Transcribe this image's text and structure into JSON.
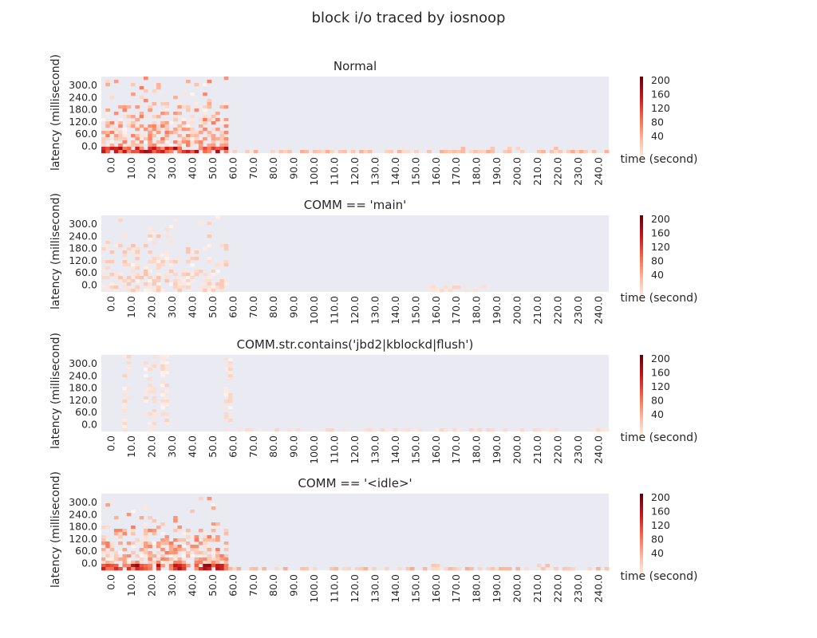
{
  "figure": {
    "title": "block i/o traced by iosnoop"
  },
  "chart_data": [
    {
      "type": "heatmap",
      "title": "Normal",
      "ylabel": "latency (millisecond)",
      "xlabel": "time (second)",
      "x_ticklabels": [
        "0.0",
        "10.0",
        "20.0",
        "30.0",
        "40.0",
        "50.0",
        "60.0",
        "70.0",
        "80.0",
        "90.0",
        "100.0",
        "110.0",
        "120.0",
        "130.0",
        "140.0",
        "150.0",
        "160.0",
        "170.0",
        "180.0",
        "190.0",
        "200.0",
        "210.0",
        "220.0",
        "230.0",
        "240.0"
      ],
      "y_ticklabels": [
        "300.0",
        "240.0",
        "180.0",
        "120.0",
        "60.0",
        "0.0"
      ],
      "colorbar_ticks": [
        "200",
        "160",
        "120",
        "80",
        "40"
      ],
      "colormap": "Reds",
      "active_range_seconds": [
        0,
        60
      ],
      "sparse_range_seconds": [
        60,
        240
      ],
      "grid": false
    },
    {
      "type": "heatmap",
      "title": "COMM == 'main'",
      "ylabel": "latency (millisecond)",
      "xlabel": "time (second)",
      "x_ticklabels": [
        "0.0",
        "10.0",
        "20.0",
        "30.0",
        "40.0",
        "50.0",
        "60.0",
        "70.0",
        "80.0",
        "90.0",
        "100.0",
        "110.0",
        "120.0",
        "130.0",
        "140.0",
        "150.0",
        "160.0",
        "170.0",
        "180.0",
        "190.0",
        "200.0",
        "210.0",
        "220.0",
        "230.0",
        "240.0"
      ],
      "y_ticklabels": [
        "300.0",
        "240.0",
        "180.0",
        "120.0",
        "60.0",
        "0.0"
      ],
      "colorbar_ticks": [
        "200",
        "160",
        "120",
        "80",
        "40"
      ],
      "colormap": "Reds",
      "active_range_seconds": [
        0,
        60
      ],
      "sparse_range_seconds": [
        155,
        180
      ],
      "grid": false
    },
    {
      "type": "heatmap",
      "title": "COMM.str.contains('jbd2|kblockd|flush')",
      "ylabel": "latency (millisecond)",
      "xlabel": "time (second)",
      "x_ticklabels": [
        "0.0",
        "10.0",
        "20.0",
        "30.0",
        "40.0",
        "50.0",
        "60.0",
        "70.0",
        "80.0",
        "90.0",
        "100.0",
        "110.0",
        "120.0",
        "130.0",
        "140.0",
        "150.0",
        "160.0",
        "170.0",
        "180.0",
        "190.0",
        "200.0",
        "210.0",
        "220.0",
        "230.0",
        "240.0"
      ],
      "y_ticklabels": [
        "300.0",
        "240.0",
        "180.0",
        "120.0",
        "60.0",
        "0.0"
      ],
      "colorbar_ticks": [
        "200",
        "160",
        "120",
        "80",
        "40"
      ],
      "colormap": "Reds",
      "active_range_seconds": [
        10,
        60
      ],
      "sparse_range_seconds": [
        60,
        240
      ],
      "grid": false
    },
    {
      "type": "heatmap",
      "title": "COMM == '<idle>'",
      "ylabel": "latency (millisecond)",
      "xlabel": "time (second)",
      "x_ticklabels": [
        "0.0",
        "10.0",
        "20.0",
        "30.0",
        "40.0",
        "50.0",
        "60.0",
        "70.0",
        "80.0",
        "90.0",
        "100.0",
        "110.0",
        "120.0",
        "130.0",
        "140.0",
        "150.0",
        "160.0",
        "170.0",
        "180.0",
        "190.0",
        "200.0",
        "210.0",
        "220.0",
        "230.0",
        "240.0"
      ],
      "y_ticklabels": [
        "300.0",
        "240.0",
        "180.0",
        "120.0",
        "60.0",
        "0.0"
      ],
      "colorbar_ticks": [
        "200",
        "160",
        "120",
        "80",
        "40"
      ],
      "colormap": "Reds",
      "active_range_seconds": [
        0,
        60
      ],
      "sparse_range_seconds": [
        60,
        240
      ],
      "grid": false
    }
  ],
  "colors": {
    "axes_background": "#EAEAF2",
    "text": "#262626"
  }
}
